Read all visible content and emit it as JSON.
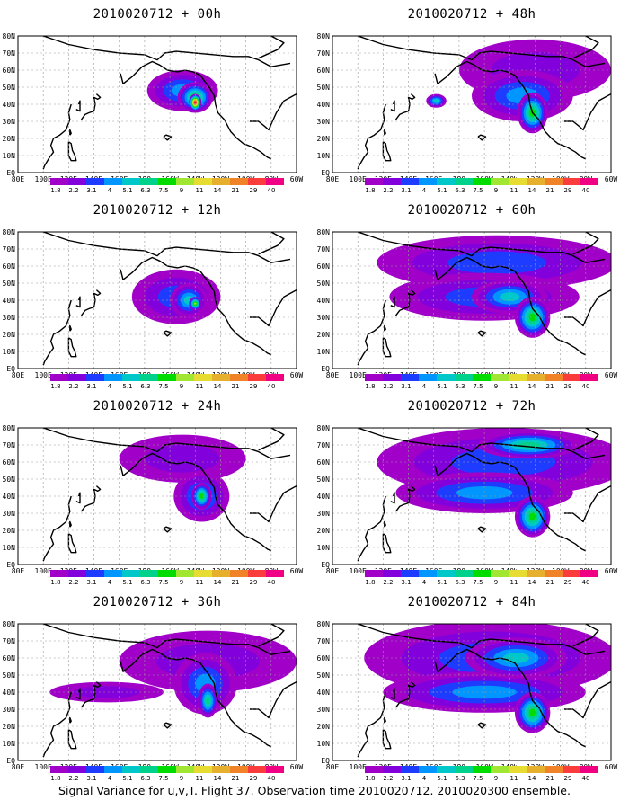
{
  "footer": "Signal Variance for u,v,T. Flight 37. Observation time 2010020712. 2010020300 ensemble.",
  "colorbar": {
    "labels": [
      "1.8",
      "2.2",
      "3.1",
      "4",
      "5.1",
      "6.3",
      "7.5",
      "9",
      "11",
      "14",
      "21",
      "29",
      "40"
    ],
    "colors": [
      "#a000c8",
      "#8200dc",
      "#1e3cff",
      "#0096ff",
      "#00c8c8",
      "#00d28c",
      "#00dc00",
      "#a0e632",
      "#e6dc32",
      "#e6af2d",
      "#f08228",
      "#fa3c3c",
      "#f00082"
    ]
  },
  "map": {
    "lat_labels": [
      "80N",
      "70N",
      "60N",
      "50N",
      "40N",
      "30N",
      "20N",
      "10N",
      "EQ"
    ],
    "lon_labels": [
      "80E",
      "100E",
      "120E",
      "140E",
      "160E",
      "180",
      "160W",
      "140W",
      "120W",
      "100W",
      "80W",
      "60W"
    ]
  },
  "chart_data": [
    {
      "type": "heatmap",
      "title": "2010020712 + 00h",
      "variable": "Signal variance (u,v,T)",
      "lead_hours": 0,
      "lon_range": [
        80,
        300
      ],
      "lat_range": [
        0,
        80
      ],
      "blobs": [
        {
          "lon": 210,
          "lat": 48,
          "rx": 28,
          "ry": 12,
          "level": 3
        },
        {
          "lon": 220,
          "lat": 44,
          "rx": 14,
          "ry": 9,
          "level": 6
        },
        {
          "lon": 220,
          "lat": 41,
          "rx": 5,
          "ry": 5,
          "level": 12
        }
      ],
      "max_value": 40
    },
    {
      "type": "heatmap",
      "title": "2010020712 + 48h",
      "variable": "Signal variance (u,v,T)",
      "lead_hours": 48,
      "lon_range": [
        80,
        300
      ],
      "lat_range": [
        0,
        80
      ],
      "blobs": [
        {
          "lon": 240,
          "lat": 60,
          "rx": 60,
          "ry": 18,
          "level": 1
        },
        {
          "lon": 230,
          "lat": 45,
          "rx": 40,
          "ry": 15,
          "level": 3
        },
        {
          "lon": 238,
          "lat": 35,
          "rx": 12,
          "ry": 12,
          "level": 6
        },
        {
          "lon": 162,
          "lat": 42,
          "rx": 8,
          "ry": 4,
          "level": 4
        }
      ],
      "max_value": 9
    },
    {
      "type": "heatmap",
      "title": "2010020712 + 12h",
      "variable": "Signal variance (u,v,T)",
      "lead_hours": 12,
      "lon_range": [
        80,
        300
      ],
      "lat_range": [
        0,
        80
      ],
      "blobs": [
        {
          "lon": 205,
          "lat": 42,
          "rx": 35,
          "ry": 16,
          "level": 2
        },
        {
          "lon": 215,
          "lat": 40,
          "rx": 15,
          "ry": 10,
          "level": 4
        },
        {
          "lon": 220,
          "lat": 38,
          "rx": 5,
          "ry": 4,
          "level": 7
        }
      ],
      "max_value": 9
    },
    {
      "type": "heatmap",
      "title": "2010020712 + 60h",
      "variable": "Signal variance (u,v,T)",
      "lead_hours": 60,
      "lon_range": [
        80,
        300
      ],
      "lat_range": [
        0,
        80
      ],
      "blobs": [
        {
          "lon": 210,
          "lat": 62,
          "rx": 95,
          "ry": 16,
          "level": 2
        },
        {
          "lon": 200,
          "lat": 42,
          "rx": 75,
          "ry": 14,
          "level": 2
        },
        {
          "lon": 220,
          "lat": 42,
          "rx": 30,
          "ry": 10,
          "level": 4
        },
        {
          "lon": 238,
          "lat": 30,
          "rx": 14,
          "ry": 12,
          "level": 6
        }
      ],
      "max_value": 9
    },
    {
      "type": "heatmap",
      "title": "2010020712 + 24h",
      "variable": "Signal variance (u,v,T)",
      "lead_hours": 24,
      "lon_range": [
        80,
        300
      ],
      "lat_range": [
        0,
        80
      ],
      "blobs": [
        {
          "lon": 210,
          "lat": 62,
          "rx": 50,
          "ry": 14,
          "level": 1
        },
        {
          "lon": 225,
          "lat": 40,
          "rx": 22,
          "ry": 15,
          "level": 3
        },
        {
          "lon": 225,
          "lat": 40,
          "rx": 8,
          "ry": 8,
          "level": 6
        }
      ],
      "max_value": 9
    },
    {
      "type": "heatmap",
      "title": "2010020712 + 72h",
      "variable": "Signal variance (u,v,T)",
      "lead_hours": 72,
      "lon_range": [
        80,
        300
      ],
      "lat_range": [
        0,
        80
      ],
      "blobs": [
        {
          "lon": 215,
          "lat": 60,
          "rx": 100,
          "ry": 20,
          "level": 2
        },
        {
          "lon": 235,
          "lat": 70,
          "rx": 40,
          "ry": 8,
          "level": 5
        },
        {
          "lon": 200,
          "lat": 42,
          "rx": 70,
          "ry": 12,
          "level": 3
        },
        {
          "lon": 238,
          "lat": 28,
          "rx": 14,
          "ry": 12,
          "level": 6
        }
      ],
      "max_value": 11
    },
    {
      "type": "heatmap",
      "title": "2010020712 + 36h",
      "variable": "Signal variance (u,v,T)",
      "lead_hours": 36,
      "lon_range": [
        80,
        300
      ],
      "lat_range": [
        0,
        80
      ],
      "blobs": [
        {
          "lon": 230,
          "lat": 58,
          "rx": 70,
          "ry": 18,
          "level": 1
        },
        {
          "lon": 150,
          "lat": 40,
          "rx": 45,
          "ry": 6,
          "level": 1
        },
        {
          "lon": 228,
          "lat": 45,
          "rx": 25,
          "ry": 18,
          "level": 3
        },
        {
          "lon": 230,
          "lat": 35,
          "rx": 8,
          "ry": 10,
          "level": 5
        }
      ],
      "max_value": 9
    },
    {
      "type": "heatmap",
      "title": "2010020712 + 84h",
      "variable": "Signal variance (u,v,T)",
      "lead_hours": 84,
      "lon_range": [
        80,
        300
      ],
      "lat_range": [
        0,
        80
      ],
      "blobs": [
        {
          "lon": 205,
          "lat": 60,
          "rx": 100,
          "ry": 22,
          "level": 2
        },
        {
          "lon": 200,
          "lat": 40,
          "rx": 80,
          "ry": 12,
          "level": 3
        },
        {
          "lon": 225,
          "lat": 60,
          "rx": 40,
          "ry": 12,
          "level": 4
        },
        {
          "lon": 238,
          "lat": 28,
          "rx": 14,
          "ry": 12,
          "level": 6
        }
      ],
      "max_value": 11
    }
  ]
}
